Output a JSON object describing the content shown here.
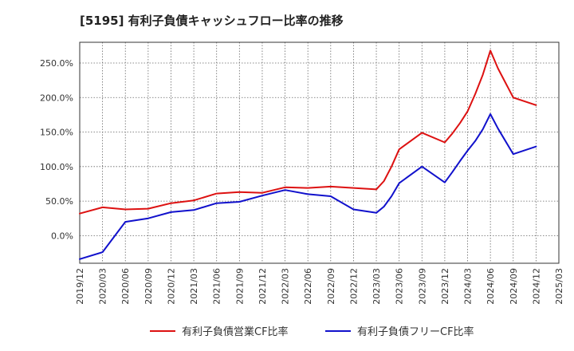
{
  "chart_data": {
    "type": "line",
    "title": "[5195]  有利子負債キャッシュフロー比率の推移",
    "xlabel": "",
    "ylabel": "",
    "x": [
      "2019/12",
      "2020/03",
      "2020/06",
      "2020/09",
      "2020/12",
      "2021/03",
      "2021/06",
      "2021/09",
      "2021/12",
      "2022/03",
      "2022/06",
      "2022/09",
      "2022/12",
      "2023/03",
      "2023/06",
      "2023/09",
      "2023/12",
      "2024/03",
      "2024/06",
      "2024/09",
      "2024/12",
      "2025/03"
    ],
    "ylim": [
      -40,
      280
    ],
    "yticks": [
      0,
      50,
      100,
      150,
      200,
      250
    ],
    "ytick_labels": [
      "0.0%",
      "50.0%",
      "100.0%",
      "150.0%",
      "200.0%",
      "250.0%"
    ],
    "grid": true,
    "legend_position": "bottom",
    "series": [
      {
        "name": "有利子負債営業CF比率",
        "color": "#dd1111",
        "points": [
          {
            "x": "2019/12",
            "y": 32
          },
          {
            "x": "2020/03",
            "y": 41
          },
          {
            "x": "2020/06",
            "y": 38
          },
          {
            "x": "2020/09",
            "y": 39
          },
          {
            "x": "2020/12",
            "y": 47
          },
          {
            "x": "2021/03",
            "y": 51
          },
          {
            "x": "2021/06",
            "y": 61
          },
          {
            "x": "2021/09",
            "y": 63
          },
          {
            "x": "2021/12",
            "y": 62
          },
          {
            "x": "2022/03",
            "y": 70
          },
          {
            "x": "2022/06",
            "y": 69
          },
          {
            "x": "2022/09",
            "y": 71
          },
          {
            "x": "2022/12",
            "y": 69
          },
          {
            "x": "2023/03",
            "y": 67
          },
          {
            "x": "2023/04",
            "y": 79
          },
          {
            "x": "2023/05",
            "y": 100
          },
          {
            "x": "2023/06",
            "y": 125
          },
          {
            "x": "2023/09",
            "y": 149
          },
          {
            "x": "2023/12",
            "y": 135
          },
          {
            "x": "2024/01",
            "y": 148
          },
          {
            "x": "2024/02",
            "y": 163
          },
          {
            "x": "2024/03",
            "y": 180
          },
          {
            "x": "2024/04",
            "y": 205
          },
          {
            "x": "2024/05",
            "y": 233
          },
          {
            "x": "2024/06",
            "y": 268
          },
          {
            "x": "2024/07",
            "y": 242
          },
          {
            "x": "2024/09",
            "y": 200
          },
          {
            "x": "2024/12",
            "y": 189
          }
        ]
      },
      {
        "name": "有利子負債フリーCF比率",
        "color": "#1111cc",
        "points": [
          {
            "x": "2019/12",
            "y": -34
          },
          {
            "x": "2020/03",
            "y": -24
          },
          {
            "x": "2020/06",
            "y": 20
          },
          {
            "x": "2020/09",
            "y": 25
          },
          {
            "x": "2020/12",
            "y": 34
          },
          {
            "x": "2021/03",
            "y": 37
          },
          {
            "x": "2021/06",
            "y": 47
          },
          {
            "x": "2021/09",
            "y": 49
          },
          {
            "x": "2021/12",
            "y": 58
          },
          {
            "x": "2022/03",
            "y": 66
          },
          {
            "x": "2022/06",
            "y": 60
          },
          {
            "x": "2022/09",
            "y": 57
          },
          {
            "x": "2022/12",
            "y": 38
          },
          {
            "x": "2023/03",
            "y": 33
          },
          {
            "x": "2023/04",
            "y": 42
          },
          {
            "x": "2023/05",
            "y": 57
          },
          {
            "x": "2023/06",
            "y": 76
          },
          {
            "x": "2023/09",
            "y": 100
          },
          {
            "x": "2023/12",
            "y": 77
          },
          {
            "x": "2024/01",
            "y": 92
          },
          {
            "x": "2024/02",
            "y": 108
          },
          {
            "x": "2024/03",
            "y": 123
          },
          {
            "x": "2024/04",
            "y": 137
          },
          {
            "x": "2024/05",
            "y": 154
          },
          {
            "x": "2024/06",
            "y": 176
          },
          {
            "x": "2024/07",
            "y": 155
          },
          {
            "x": "2024/09",
            "y": 118
          },
          {
            "x": "2024/12",
            "y": 129
          }
        ]
      }
    ]
  }
}
